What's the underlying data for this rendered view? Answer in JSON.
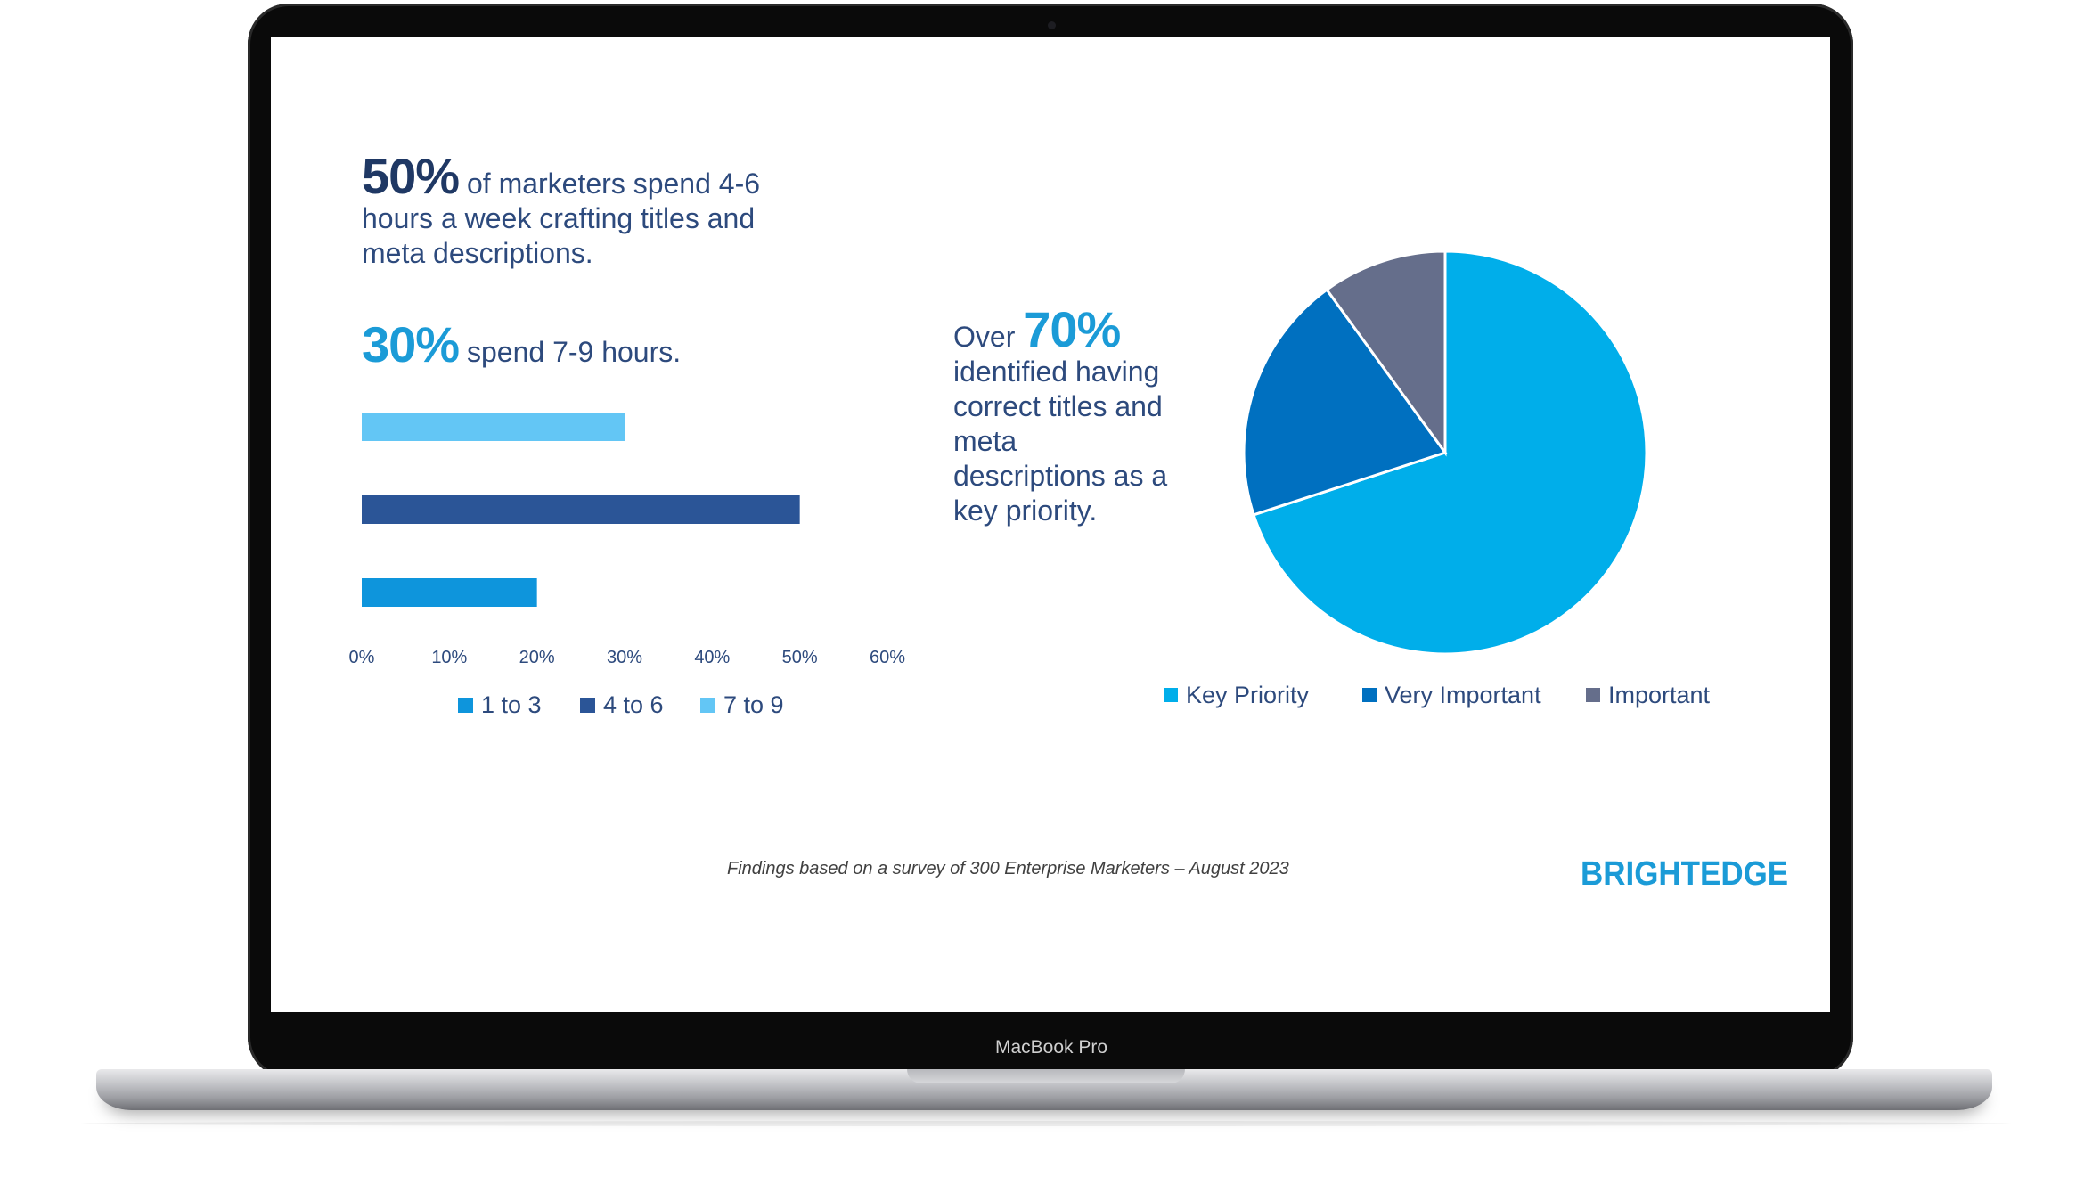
{
  "device": {
    "model_label": "MacBook Pro"
  },
  "slide": {
    "stat1": {
      "value": "50%",
      "text_a": " of marketers spend 4-6",
      "text_b": "hours a week crafting titles and",
      "text_c": "meta descriptions."
    },
    "stat2": {
      "value": "30%",
      "text": " spend 7-9 hours."
    },
    "stat3": {
      "prefix": "Over ",
      "value": "70%",
      "text_a": "identified having",
      "text_b": "correct titles and",
      "text_c": "meta",
      "text_d": "descriptions as a",
      "text_e": "key priority."
    },
    "footnote": "Findings based on a survey of 300 Enterprise Marketers – August 2023",
    "logo": "BRIGHTEDGE"
  },
  "chart_data": [
    {
      "type": "bar",
      "orientation": "horizontal",
      "categories": [
        "1 to 3",
        "4 to 6",
        "7 to 9"
      ],
      "values": [
        20,
        50,
        30
      ],
      "colors": [
        "#0e95dc",
        "#2b5597",
        "#63c6f5"
      ],
      "xlim": [
        0,
        60
      ],
      "xticks": [
        "0%",
        "10%",
        "20%",
        "30%",
        "40%",
        "50%",
        "60%"
      ],
      "legend": [
        {
          "label": "1 to 3",
          "color": "#0e95dc"
        },
        {
          "label": "4 to 6",
          "color": "#2b5597"
        },
        {
          "label": "7 to 9",
          "color": "#63c6f5"
        }
      ],
      "legend_position": "bottom"
    },
    {
      "type": "pie",
      "labels": [
        "Key Priority",
        "Very Important",
        "Important"
      ],
      "values": [
        70,
        20,
        10
      ],
      "colors": [
        "#00aeea",
        "#0070c0",
        "#656e8b"
      ],
      "legend_position": "bottom"
    }
  ]
}
